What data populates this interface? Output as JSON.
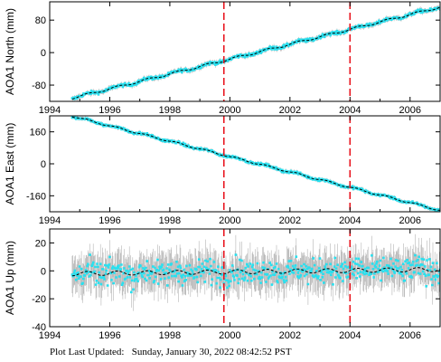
{
  "footer": {
    "label": "Plot Last Updated:",
    "datetime": "Sunday, January 30, 2022 08:42:52 PST"
  },
  "colors": {
    "data": "#29e0ef",
    "errorbar": "#b4b4b4",
    "model": "#000000",
    "event_line": "#e8141e"
  },
  "chart_data": [
    {
      "type": "scatter",
      "ylabel": "AOA1 North (mm)",
      "xlim": [
        1994,
        2007
      ],
      "ylim": [
        -120,
        125
      ],
      "xticks": [
        1994,
        1996,
        1998,
        2000,
        2002,
        2004,
        2006
      ],
      "yticks": [
        -80,
        0,
        80
      ],
      "start": [
        1994.75,
        -112
      ],
      "end": [
        2007.0,
        112
      ],
      "seasonal_amplitude": 2.5,
      "error": 5,
      "noise": 2,
      "event_lines": [
        1999.8,
        2004.0
      ],
      "model_line": "dashed"
    },
    {
      "type": "scatter",
      "ylabel": "AOA1 East (mm)",
      "xlim": [
        1994,
        2007
      ],
      "ylim": [
        -240,
        240
      ],
      "xticks": [
        1994,
        1996,
        1998,
        2000,
        2002,
        2004,
        2006
      ],
      "yticks": [
        -160,
        0,
        160
      ],
      "start": [
        1994.75,
        238
      ],
      "end": [
        2007.0,
        -233
      ],
      "seasonal_amplitude": 4,
      "error": 8,
      "noise": 3,
      "event_lines": [
        1999.8,
        2004.0
      ],
      "model_line": "dashed"
    },
    {
      "type": "scatter",
      "ylabel": "AOA1 Up (mm)",
      "xlim": [
        1994,
        2007
      ],
      "ylim": [
        -40,
        30
      ],
      "xticks": [
        1994,
        1996,
        1998,
        2000,
        2002,
        2004,
        2006
      ],
      "yticks": [
        -40,
        -20,
        0,
        20
      ],
      "start": [
        1994.75,
        -2
      ],
      "end": [
        2007.0,
        1
      ],
      "seasonal_amplitude": 1.5,
      "error": 11,
      "noise": 4.5,
      "event_lines": [
        1999.8,
        2004.0
      ],
      "model_line": "dashed"
    }
  ]
}
